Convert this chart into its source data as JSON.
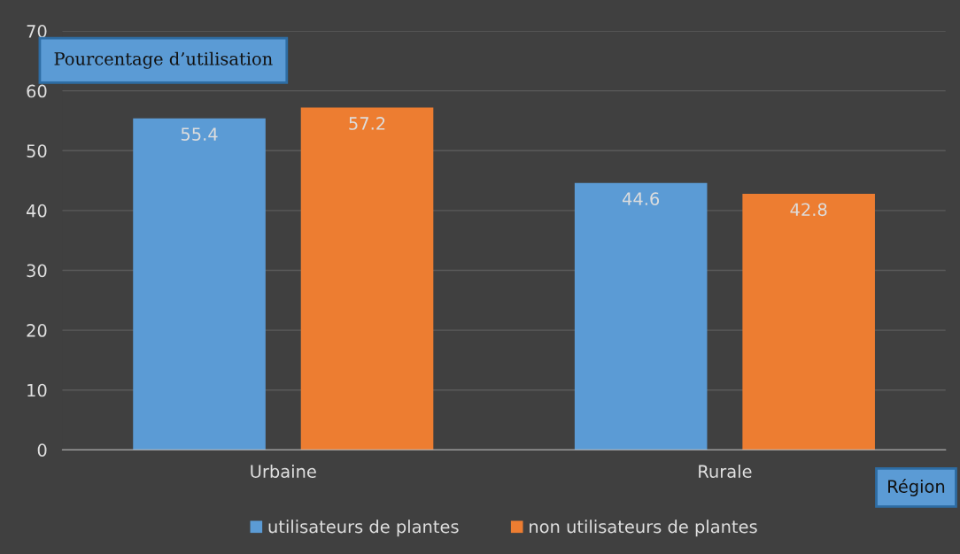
{
  "chart_data": {
    "type": "bar",
    "xlabel": "Région",
    "ylabel": "Pourcentage d’utilisation",
    "categories": [
      "Urbaine",
      "Rurale"
    ],
    "series": [
      {
        "name": "utilisateurs de plantes",
        "color": "#5b9bd5",
        "values": [
          55.4,
          44.6
        ]
      },
      {
        "name": "non utilisateurs de plantes",
        "color": "#ed7d31",
        "values": [
          57.2,
          42.8
        ]
      }
    ],
    "ylim": [
      0,
      70
    ],
    "yticks": [
      0,
      10,
      20,
      30,
      40,
      50,
      60,
      70
    ],
    "grid": "y",
    "legend": "bottom",
    "data_labels": true
  }
}
